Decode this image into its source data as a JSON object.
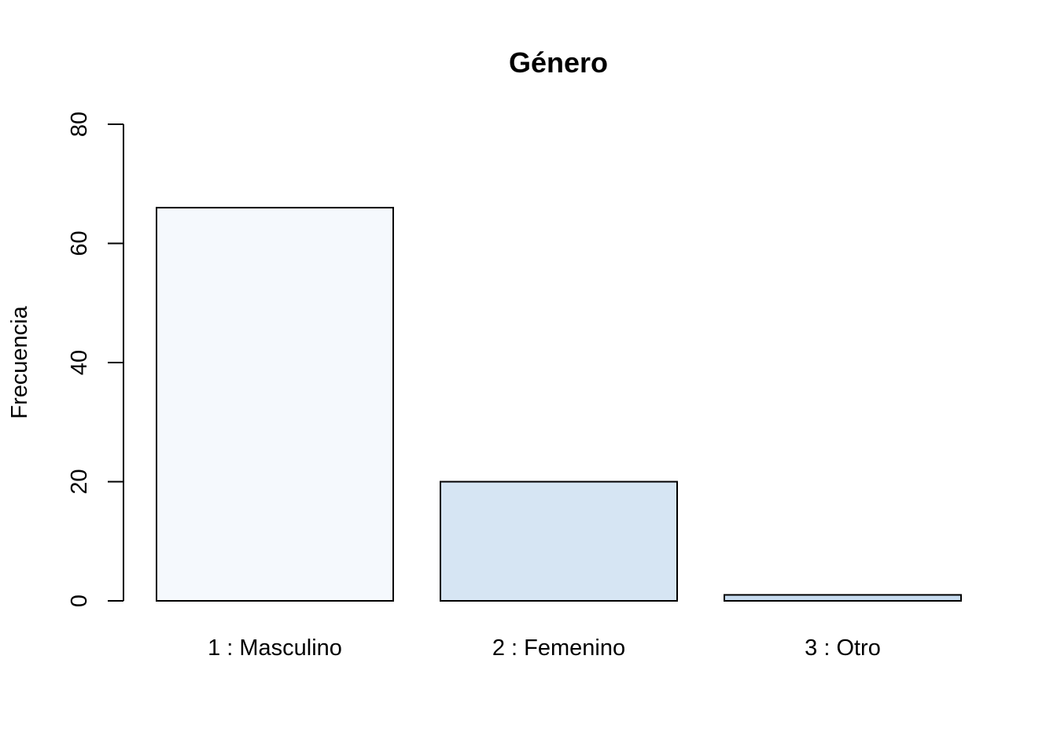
{
  "chart_data": {
    "type": "bar",
    "title": "Género",
    "xlabel": "",
    "ylabel": "Frecuencia",
    "categories": [
      "1 : Masculino",
      "2 : Femenino",
      "3 : Otro"
    ],
    "values": [
      66,
      20,
      1
    ],
    "bar_colors": [
      "#F5F9FD",
      "#D6E5F3",
      "#C6DAEE"
    ],
    "ylim": [
      0,
      80
    ],
    "yticks": [
      0,
      20,
      40,
      60,
      80
    ],
    "grid": false,
    "legend": "none"
  }
}
